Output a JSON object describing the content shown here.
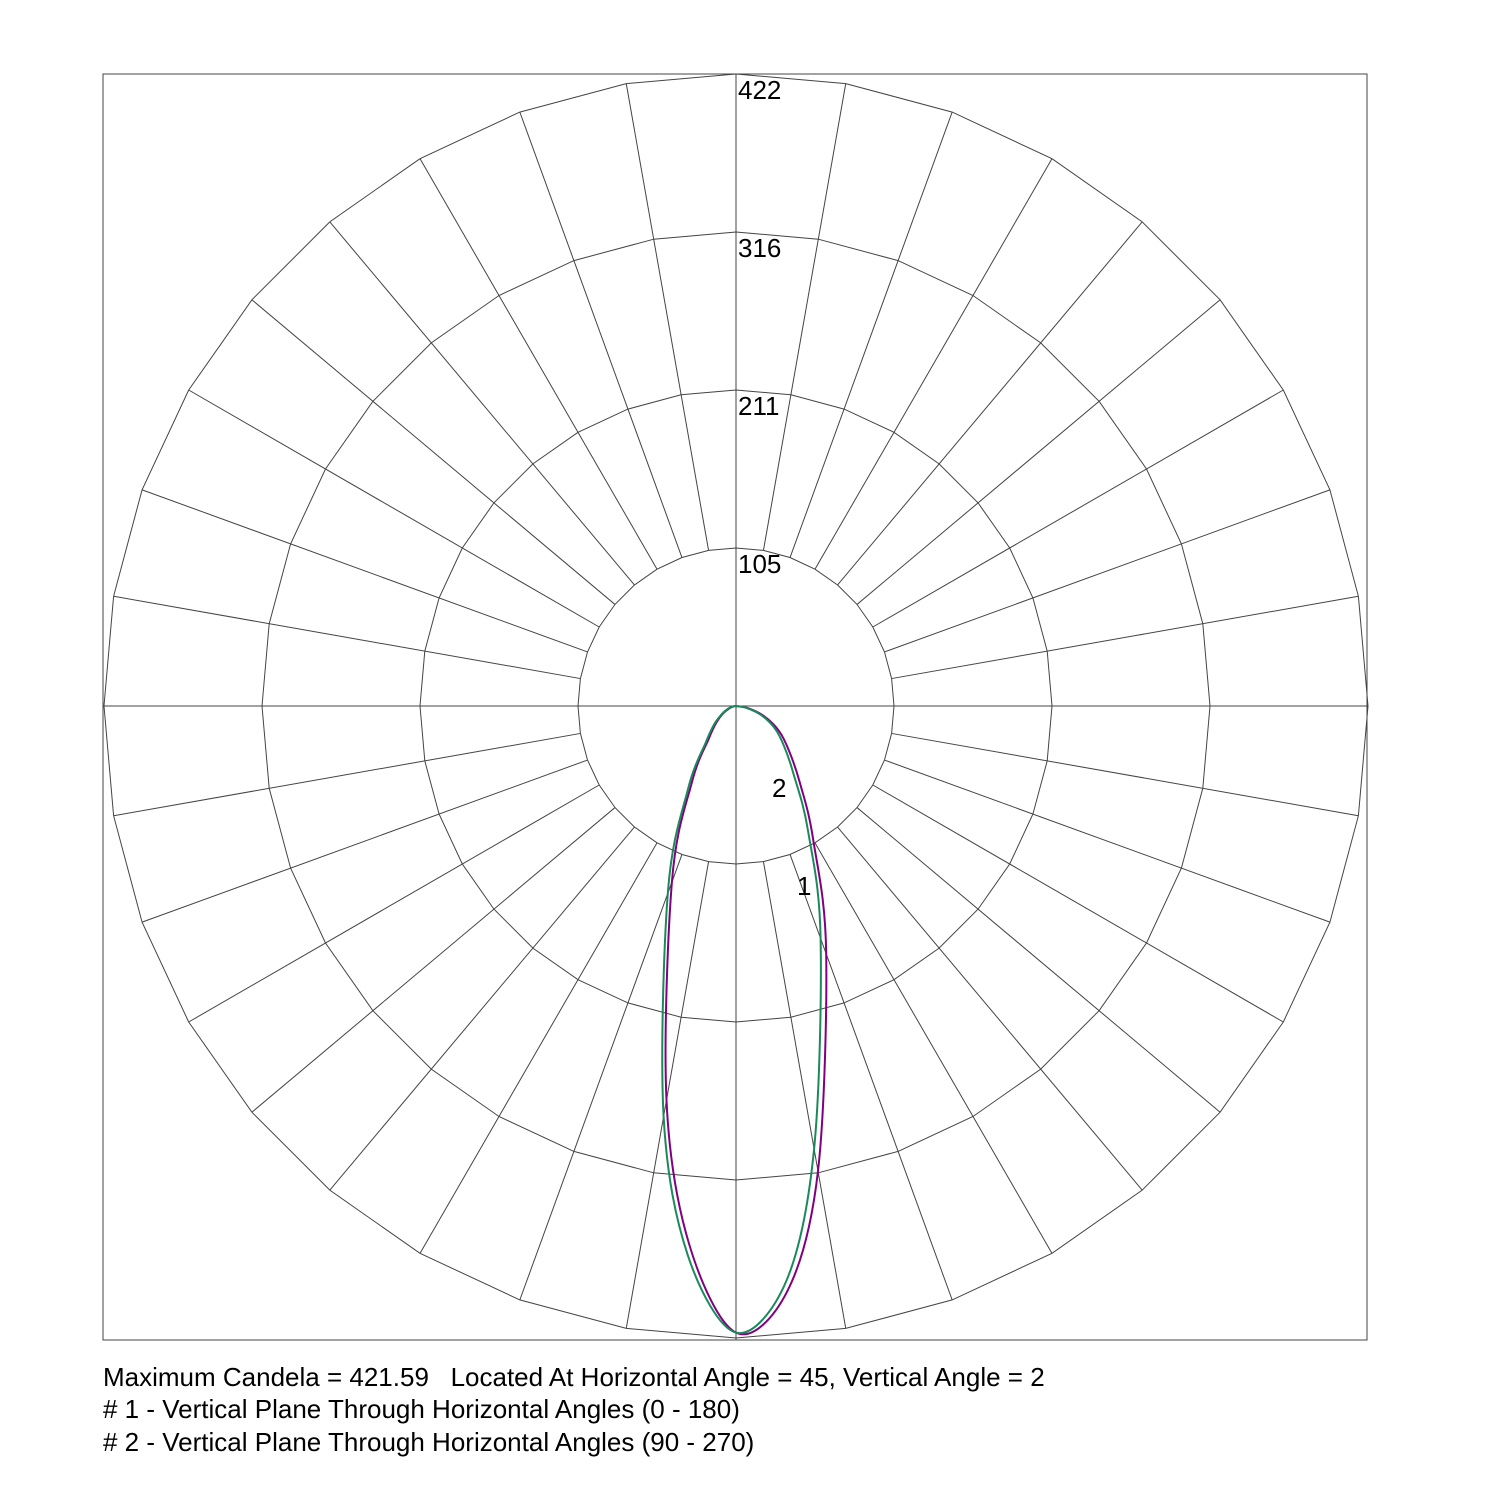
{
  "chart_data": {
    "type": "polar",
    "rlim": [
      0,
      421.59
    ],
    "rticks": [
      {
        "value": 105.4,
        "label": "105"
      },
      {
        "value": 210.8,
        "label": "211"
      },
      {
        "value": 316.2,
        "label": "316"
      },
      {
        "value": 421.59,
        "label": "422"
      }
    ],
    "x": [
      -90,
      -80,
      -70,
      -60,
      -50,
      -40,
      -30,
      -20,
      -10,
      -5,
      0,
      5,
      10,
      20,
      30,
      40,
      50,
      60,
      70,
      80,
      90
    ],
    "series": [
      {
        "name": "1",
        "color": "#800080",
        "values": [
          0,
          2,
          5,
          10,
          17,
          28,
          59,
          125,
          267,
          360,
          418,
          392,
          315,
          176,
          103,
          66,
          46,
          33,
          20,
          8,
          0
        ]
      },
      {
        "name": "2",
        "color": "#1a8a5a",
        "values": [
          0,
          2,
          6,
          11,
          19,
          31,
          64,
          133,
          278,
          368,
          418,
          385,
          300,
          165,
          96,
          60,
          42,
          30,
          18,
          7,
          0
        ]
      }
    ],
    "annotations": [
      "Maximum Candela = 421.59   Located At Horizontal Angle = 45, Vertical Angle = 2",
      "# 1 - Vertical Plane Through Horizontal Angles (0 - 180)",
      "# 2 - Vertical Plane Through Horizontal Angles (90 - 270)"
    ]
  }
}
